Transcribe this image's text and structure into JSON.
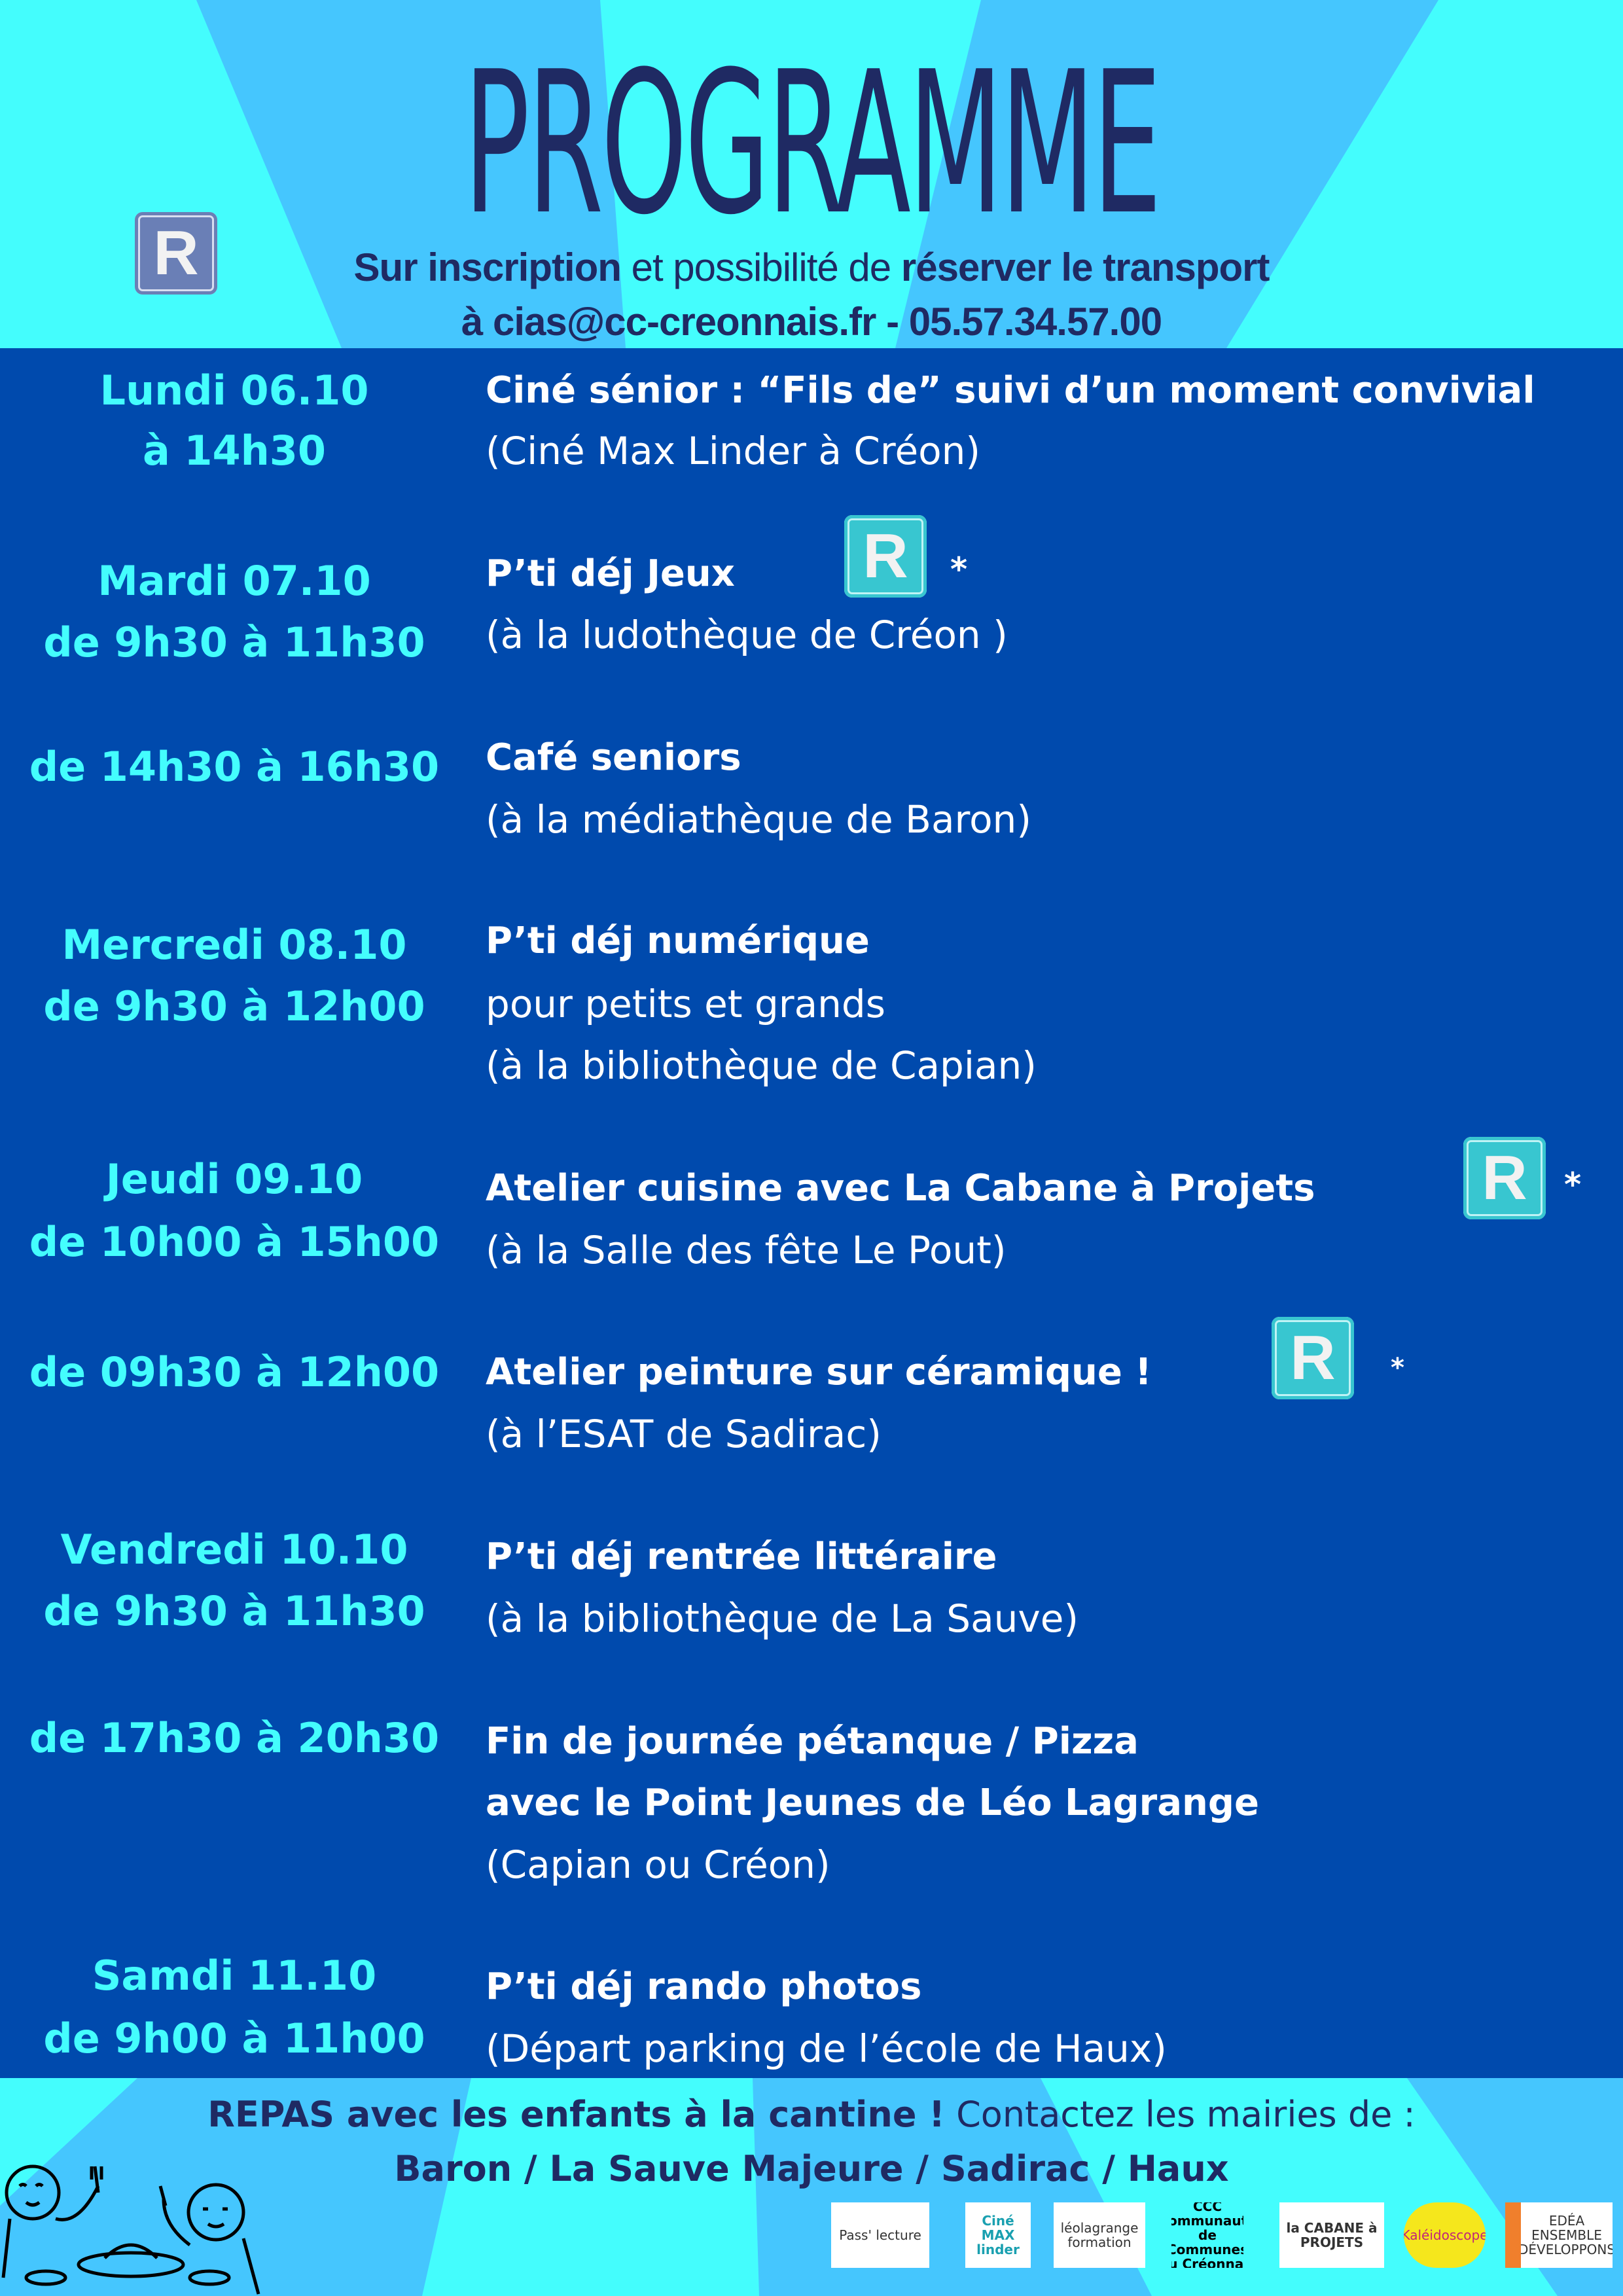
{
  "colors": {
    "background": "#44fdfd",
    "rays": "#45c6fe",
    "band": "#004aad",
    "title": "#1f2a63",
    "date_text": "#44fdfd",
    "event_text": "#ffffff",
    "badge": "#38c6d0",
    "badge_header": "#6a7fb6"
  },
  "header": {
    "title": "PROGRAMME",
    "badge_letter": "R",
    "badge_icon": "reservation-badge",
    "line1": {
      "bold1": "Sur inscription",
      "normal": " et possibilité de ",
      "bold2": "réserver le transport"
    },
    "line2": "à  cias@cc-creonnais.fr - 05.57.34.57.00"
  },
  "events": [
    {
      "date": [
        "Lundi 06.10",
        "à 14h30"
      ],
      "title": "Ciné sénior : “Fils de” suivi d’un moment convivial",
      "details": [
        "(Ciné Max Linder à Créon)"
      ],
      "reservation": false
    },
    {
      "date": [
        "Mardi 07.10",
        "de 9h30 à 11h30"
      ],
      "title": "P’ti déj Jeux",
      "details": [
        "(à la ludothèque de Créon )"
      ],
      "reservation": true,
      "mark": "*"
    },
    {
      "date": [
        "de 14h30 à 16h30"
      ],
      "title": "Café seniors",
      "details": [
        "(à la médiathèque de Baron)"
      ],
      "reservation": false
    },
    {
      "date": [
        "Mercredi 08.10",
        "de 9h30 à 12h00"
      ],
      "title": "P’ti déj numérique",
      "details": [
        "pour petits et grands",
        "(à la bibliothèque de Capian)"
      ],
      "reservation": false
    },
    {
      "date": [
        "Jeudi 09.10",
        "de 10h00 à 15h00"
      ],
      "title": "Atelier cuisine avec La Cabane à Projets",
      "details": [
        "(à la Salle des fête Le Pout)"
      ],
      "reservation": true,
      "mark": "*"
    },
    {
      "date": [
        "de 09h30 à 12h00"
      ],
      "title": "Atelier peinture sur céramique !",
      "details": [
        "(à l’ESAT de Sadirac)"
      ],
      "reservation": true,
      "mark": "*"
    },
    {
      "date": [
        "Vendredi 10.10",
        "de 9h30 à 11h30"
      ],
      "title": "P’ti déj rentrée littéraire",
      "details": [
        "(à la bibliothèque de La Sauve)"
      ],
      "reservation": false
    },
    {
      "date": [
        "de 17h30 à 20h30"
      ],
      "title": "Fin de journée pétanque / Pizza",
      "title2": "avec le Point Jeunes de Léo Lagrange",
      "details": [
        "(Capian ou Créon)"
      ],
      "reservation": false
    },
    {
      "date": [
        "Samdi 11.10",
        "de 9h00 à 11h00"
      ],
      "title": "P’ti déj rando photos",
      "details": [
        "(Départ parking de l’école de Haux)"
      ],
      "reservation": false
    }
  ],
  "footer": {
    "line1_bold": "REPAS avec les enfants à la cantine !",
    "line1_normal": " Contactez les mairies de :",
    "line2": "Baron / La Sauve Majeure / Sadirac / Haux",
    "illustration": "children-eating-drawing",
    "logos": [
      {
        "name": "pass-lecture",
        "text": "Pass' lecture"
      },
      {
        "name": "cine-max-linder",
        "text": "Ciné MAX linder"
      },
      {
        "name": "leo-lagrange",
        "text": "léolagrange formation"
      },
      {
        "name": "ccc",
        "text": "CCC Communauté de Communes du Créonnais"
      },
      {
        "name": "la-cabane-a-projets",
        "text": "la CABANE à PROJETS"
      },
      {
        "name": "kaleidoscope",
        "text": "Kaléidoscope"
      },
      {
        "name": "edea",
        "text": "EDÉA ENSEMBLE DÉVELOPPONS"
      }
    ]
  }
}
